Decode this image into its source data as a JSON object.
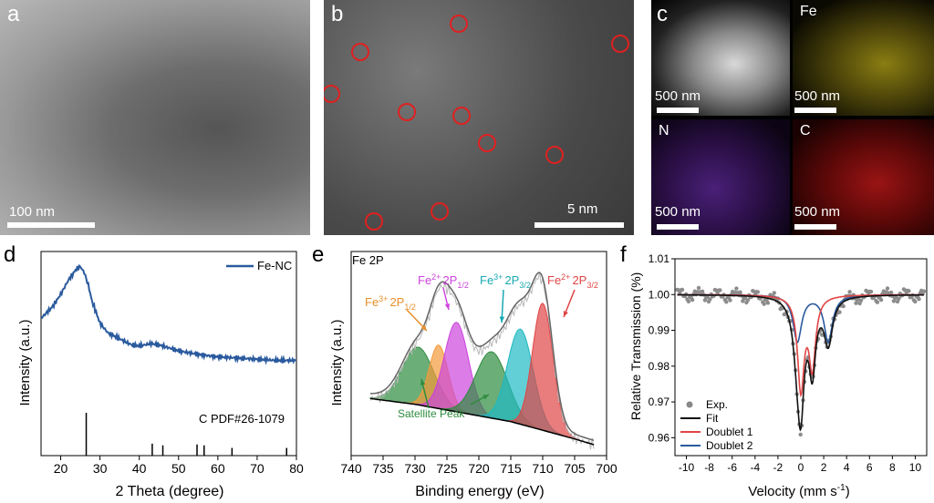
{
  "panel_a": {
    "letter": "a",
    "scale": "100 nm"
  },
  "panel_b": {
    "letter": "b",
    "scale": "5 nm"
  },
  "panel_c": {
    "letter": "c",
    "tiles": [
      {
        "label": "",
        "scale": "500 nm",
        "color": "#d9d9d9"
      },
      {
        "label": "Fe",
        "scale": "500 nm",
        "color": "#e5d32a"
      },
      {
        "label": "N",
        "scale": "500 nm",
        "color": "#8a3fd6"
      },
      {
        "label": "C",
        "scale": "500 nm",
        "color": "#e22222"
      }
    ]
  },
  "chart_data": [
    {
      "panel": "d",
      "type": "line",
      "xlabel": "2 Theta (degree)",
      "ylabel": "Intensity (a.u.)",
      "xlim": [
        15,
        80
      ],
      "xticks": [
        20,
        30,
        40,
        50,
        60,
        70,
        80
      ],
      "legend": "Fe-NC",
      "reference_label": "C PDF#26-1079",
      "series": [
        {
          "name": "Fe-NC",
          "color": "#2a5a9e",
          "x": [
            15,
            18,
            20,
            22,
            24,
            25,
            26,
            27,
            28,
            30,
            32,
            35,
            38,
            40,
            43,
            45,
            48,
            50,
            55,
            60,
            65,
            70,
            75,
            80
          ],
          "y": [
            0.52,
            0.62,
            0.72,
            0.84,
            0.93,
            0.95,
            0.9,
            0.8,
            0.66,
            0.48,
            0.4,
            0.35,
            0.3,
            0.29,
            0.31,
            0.3,
            0.27,
            0.25,
            0.22,
            0.2,
            0.19,
            0.18,
            0.17,
            0.17
          ]
        }
      ],
      "reference_peaks": [
        {
          "x": 26.5,
          "h": 1.0
        },
        {
          "x": 43.3,
          "h": 0.28
        },
        {
          "x": 46.0,
          "h": 0.24
        },
        {
          "x": 54.7,
          "h": 0.26
        },
        {
          "x": 56.5,
          "h": 0.24
        },
        {
          "x": 63.6,
          "h": 0.18
        },
        {
          "x": 77.5,
          "h": 0.18
        }
      ]
    },
    {
      "panel": "e",
      "type": "area",
      "title": "Fe 2P",
      "xlabel": "Binding energy (eV)",
      "ylabel": "Intensity (a.u.)",
      "xlim": [
        740,
        700
      ],
      "xticks": [
        740,
        735,
        730,
        725,
        720,
        715,
        710,
        705,
        700
      ],
      "baseline": {
        "x": [
          737,
          730,
          725,
          720,
          715,
          710,
          705,
          702
        ],
        "y": [
          0.32,
          0.28,
          0.24,
          0.2,
          0.16,
          0.1,
          0.04,
          0.0
        ]
      },
      "components": [
        {
          "name": "Satellite 1",
          "center": 729.5,
          "height": 0.4,
          "width": 2.5,
          "color": "#2e8b3e"
        },
        {
          "name": "Fe3+ 2P1/2",
          "center": 726.3,
          "height": 0.44,
          "width": 1.5,
          "color": "#f39a3a"
        },
        {
          "name": "Fe2+ 2P1/2",
          "center": 723.5,
          "height": 0.62,
          "width": 1.9,
          "color": "#cc44dd"
        },
        {
          "name": "Satellite 2",
          "center": 718.0,
          "height": 0.46,
          "width": 2.5,
          "color": "#2e8b3e"
        },
        {
          "name": "Fe3+ 2P3/2",
          "center": 713.5,
          "height": 0.66,
          "width": 2.0,
          "color": "#1fb9c3"
        },
        {
          "name": "Fe2+ 2P3/2",
          "center": 710.0,
          "height": 0.88,
          "width": 1.6,
          "color": "#e04545"
        }
      ],
      "annotations": {
        "fe3_p12": {
          "ion": "Fe",
          "charge": "3+",
          "orbital": "2P",
          "sub": "1/2",
          "color": "#e8902a"
        },
        "fe2_p12": {
          "ion": "Fe",
          "charge": "2+",
          "orbital": "2P",
          "sub": "1/2",
          "color": "#cc44dd"
        },
        "fe3_p32": {
          "ion": "Fe",
          "charge": "3+",
          "orbital": "2P",
          "sub": "3/2",
          "color": "#1aa9b3"
        },
        "fe2_p32": {
          "ion": "Fe",
          "charge": "2+",
          "orbital": "2P",
          "sub": "3/2",
          "color": "#e04545"
        },
        "satellite": {
          "text": "Satellite Peak",
          "color": "#2e8b3e"
        }
      }
    },
    {
      "panel": "f",
      "type": "scatter",
      "xlabel_main": "Velocity (mm s",
      "xlabel_sup": "-1",
      "xlabel_end": ")",
      "ylabel": "Relative Transmission (%)",
      "xlim": [
        -11,
        11
      ],
      "ylim": [
        0.955,
        1.01
      ],
      "xticks": [
        -10,
        -8,
        -6,
        -4,
        -2,
        0,
        2,
        4,
        6,
        8,
        10
      ],
      "yticks": [
        0.96,
        0.97,
        0.98,
        0.99,
        1.0,
        1.01
      ],
      "ytick_labels": [
        "0.96",
        "0.97",
        "0.98",
        "0.99",
        "1.00",
        "1.01"
      ],
      "doublet1": {
        "centers": [
          0.0,
          1.0
        ],
        "depth": 0.026,
        "width": 0.35
      },
      "doublet2": {
        "centers": [
          -0.3,
          2.4
        ],
        "depth": 0.013,
        "width": 0.45
      },
      "legend": [
        {
          "label": "Exp.",
          "color": "#888888",
          "kind": "dot"
        },
        {
          "label": "Fit",
          "color": "#111111",
          "kind": "line"
        },
        {
          "label": "Doublet 1",
          "color": "#e04545",
          "kind": "line"
        },
        {
          "label": "Doublet 2",
          "color": "#2a5a9e",
          "kind": "line"
        }
      ]
    }
  ]
}
